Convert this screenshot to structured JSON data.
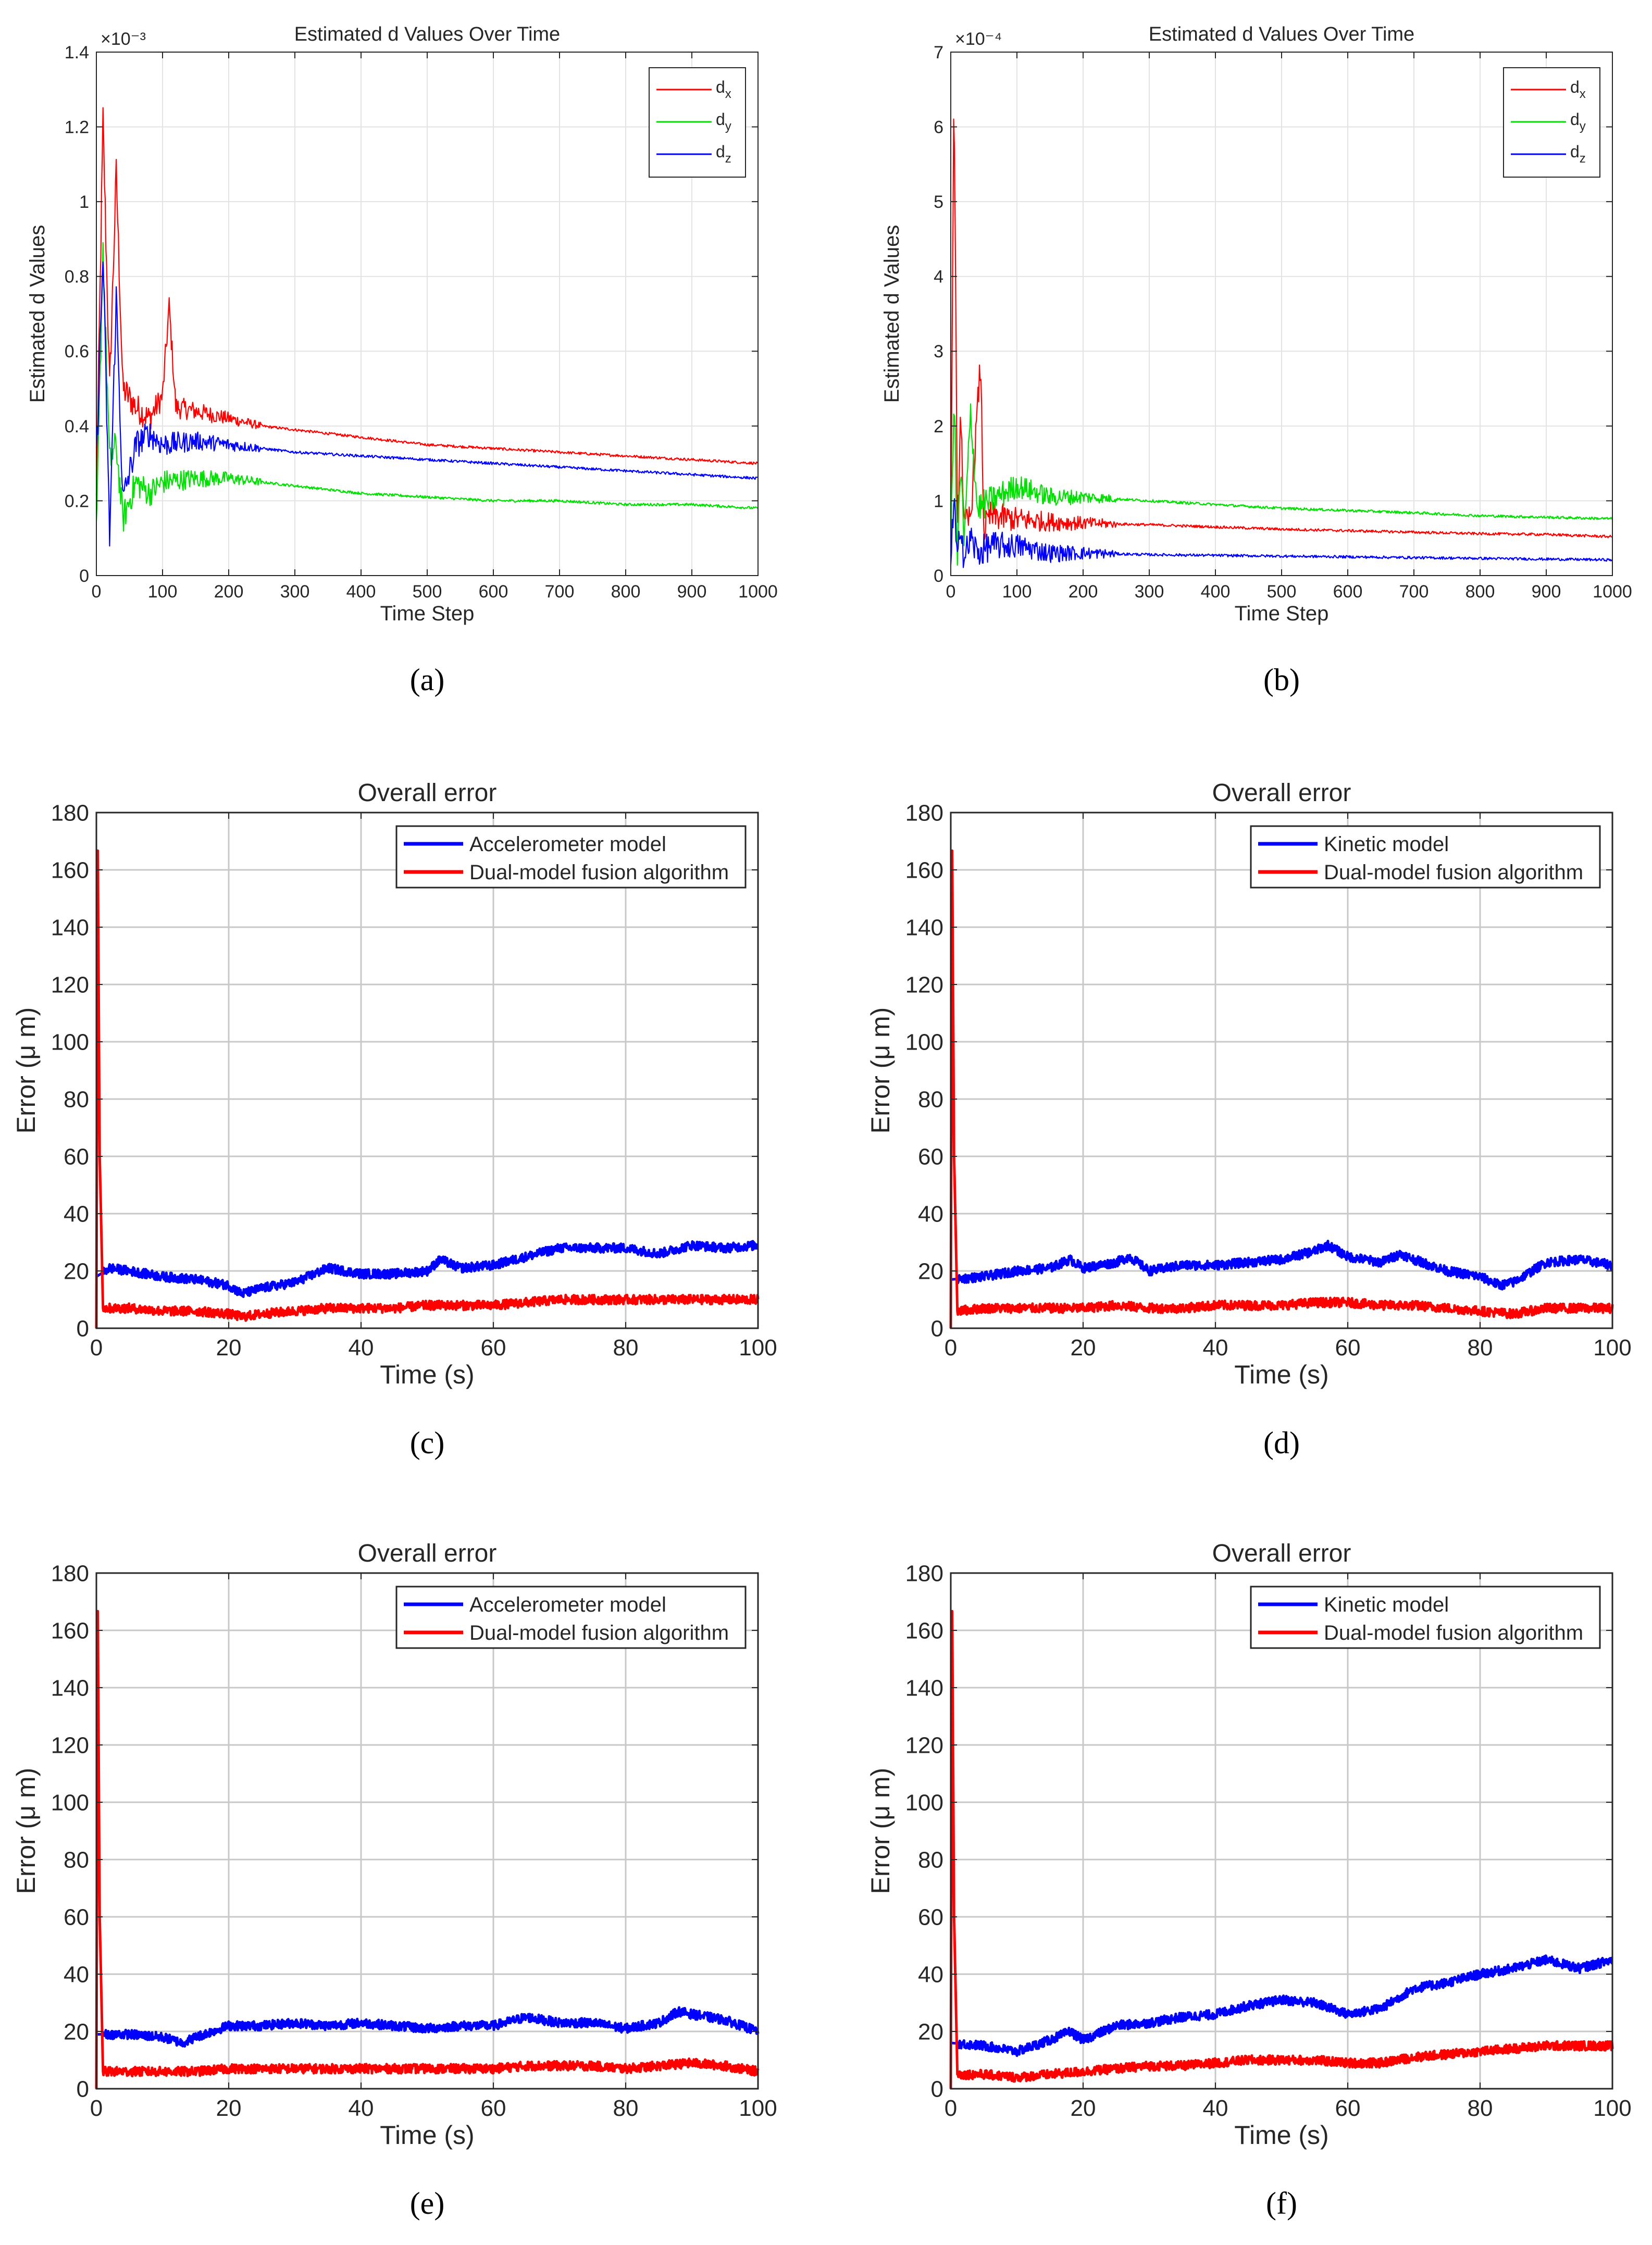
{
  "chart_data": [
    {
      "panel": "(a)",
      "type": "line",
      "title": "Estimated d Values Over Time",
      "xlabel": "Time Step",
      "ylabel": "Estimated d Values",
      "axis_exponent": "×10⁻³",
      "xlim": [
        0,
        1000
      ],
      "ylim": [
        0,
        1.4
      ],
      "xticks": [
        "0",
        "100",
        "200",
        "300",
        "400",
        "500",
        "600",
        "700",
        "800",
        "900",
        "1000"
      ],
      "yticks": [
        "0",
        "0.2",
        "0.4",
        "0.6",
        "0.8",
        "1",
        "1.2",
        "1.4"
      ],
      "grid": true,
      "legend_position": "top-right",
      "series": [
        {
          "name": "d_x",
          "color": "#ff0000",
          "x": [
            0,
            10,
            20,
            30,
            40,
            60,
            80,
            100,
            110,
            120,
            150,
            200,
            250,
            300,
            400,
            500,
            600,
            700,
            800,
            900,
            1000
          ],
          "y": [
            0.2,
            1.22,
            0.5,
            1.08,
            0.5,
            0.45,
            0.42,
            0.48,
            0.72,
            0.45,
            0.44,
            0.42,
            0.4,
            0.39,
            0.37,
            0.35,
            0.34,
            0.33,
            0.32,
            0.31,
            0.3
          ]
        },
        {
          "name": "d_y",
          "color": "#00e000",
          "x": [
            0,
            10,
            20,
            30,
            40,
            60,
            80,
            100,
            150,
            200,
            250,
            300,
            400,
            500,
            600,
            700,
            800,
            900,
            1000
          ],
          "y": [
            0.1,
            0.88,
            0.3,
            0.35,
            0.15,
            0.25,
            0.22,
            0.25,
            0.26,
            0.26,
            0.25,
            0.24,
            0.22,
            0.21,
            0.2,
            0.2,
            0.19,
            0.19,
            0.18
          ]
        },
        {
          "name": "d_z",
          "color": "#0000ff",
          "x": [
            0,
            10,
            20,
            30,
            40,
            60,
            80,
            100,
            150,
            200,
            250,
            300,
            400,
            500,
            600,
            700,
            800,
            900,
            1000
          ],
          "y": [
            0.3,
            0.86,
            0.1,
            0.75,
            0.2,
            0.35,
            0.38,
            0.35,
            0.36,
            0.35,
            0.34,
            0.33,
            0.32,
            0.31,
            0.3,
            0.29,
            0.28,
            0.27,
            0.26
          ]
        }
      ]
    },
    {
      "panel": "(b)",
      "type": "line",
      "title": "Estimated d Values Over Time",
      "xlabel": "Time Step",
      "ylabel": "Estimated d Values",
      "axis_exponent": "×10⁻⁴",
      "xlim": [
        0,
        1000
      ],
      "ylim": [
        0,
        7
      ],
      "xticks": [
        "0",
        "100",
        "200",
        "300",
        "400",
        "500",
        "600",
        "700",
        "800",
        "900",
        "1000"
      ],
      "yticks": [
        "0",
        "1",
        "2",
        "3",
        "4",
        "5",
        "6",
        "7"
      ],
      "grid": true,
      "legend_position": "top-right",
      "series": [
        {
          "name": "d_x",
          "color": "#ff0000",
          "x": [
            0,
            5,
            10,
            15,
            20,
            30,
            45,
            50,
            60,
            100,
            150,
            200,
            300,
            400,
            500,
            600,
            700,
            800,
            900,
            1000
          ],
          "y": [
            0.5,
            6.6,
            0.5,
            2.3,
            0.6,
            0.8,
            2.85,
            0.6,
            0.8,
            0.75,
            0.72,
            0.7,
            0.68,
            0.65,
            0.62,
            0.6,
            0.58,
            0.56,
            0.55,
            0.52
          ]
        },
        {
          "name": "d_y",
          "color": "#00e000",
          "x": [
            0,
            5,
            10,
            15,
            20,
            30,
            40,
            60,
            100,
            150,
            200,
            300,
            400,
            500,
            600,
            700,
            800,
            900,
            1000
          ],
          "y": [
            0.3,
            2.5,
            0.2,
            1.5,
            0.4,
            2.2,
            0.9,
            1.0,
            1.2,
            1.05,
            1.05,
            1.0,
            0.95,
            0.9,
            0.87,
            0.84,
            0.8,
            0.78,
            0.76
          ]
        },
        {
          "name": "d_z",
          "color": "#0000ff",
          "x": [
            0,
            5,
            10,
            15,
            20,
            30,
            40,
            60,
            100,
            150,
            200,
            300,
            400,
            500,
            600,
            700,
            800,
            900,
            1000
          ],
          "y": [
            0.2,
            1.0,
            0.1,
            0.8,
            0.2,
            0.5,
            0.3,
            0.4,
            0.4,
            0.3,
            0.3,
            0.28,
            0.27,
            0.26,
            0.25,
            0.24,
            0.23,
            0.22,
            0.21
          ]
        }
      ]
    },
    {
      "panel": "(c)",
      "type": "line",
      "title": "Overall error",
      "xlabel": "Time (s)",
      "ylabel": "Error (μ m)",
      "xlim": [
        0,
        100
      ],
      "ylim": [
        0,
        180
      ],
      "xticks": [
        "0",
        "20",
        "40",
        "60",
        "80",
        "100"
      ],
      "yticks": [
        "0",
        "20",
        "40",
        "60",
        "80",
        "100",
        "120",
        "140",
        "160",
        "180"
      ],
      "grid": true,
      "legend_position": "top-right",
      "series": [
        {
          "name": "Accelerometer model",
          "color": "#0000ff",
          "x": [
            0,
            2,
            5,
            10,
            15,
            20,
            22,
            25,
            30,
            35,
            40,
            45,
            50,
            52,
            55,
            60,
            65,
            70,
            75,
            80,
            85,
            90,
            95,
            100
          ],
          "y": [
            18,
            21,
            20,
            18,
            17,
            15,
            12,
            14,
            16,
            21,
            19,
            19,
            20,
            24,
            21,
            22,
            25,
            28,
            28,
            28,
            26,
            29,
            28,
            29
          ]
        },
        {
          "name": "Dual-model fusion algorithm",
          "color": "#ff0000",
          "x": [
            0,
            0.2,
            0.5,
            1,
            5,
            10,
            15,
            20,
            22,
            25,
            30,
            35,
            40,
            45,
            50,
            55,
            60,
            65,
            70,
            75,
            80,
            85,
            90,
            95,
            100
          ],
          "y": [
            0,
            172,
            60,
            7,
            7,
            6,
            6,
            5,
            4,
            5,
            6,
            7,
            7,
            7,
            8,
            8,
            8,
            9,
            10,
            10,
            10,
            10,
            10,
            10,
            10
          ]
        }
      ]
    },
    {
      "panel": "(d)",
      "type": "line",
      "title": "Overall error",
      "xlabel": "Time (s)",
      "ylabel": "Error (μ m)",
      "xlim": [
        0,
        100
      ],
      "ylim": [
        0,
        180
      ],
      "xticks": [
        "0",
        "20",
        "40",
        "60",
        "80",
        "100"
      ],
      "yticks": [
        "0",
        "20",
        "40",
        "60",
        "80",
        "100",
        "120",
        "140",
        "160",
        "180"
      ],
      "grid": true,
      "legend_position": "top-right",
      "series": [
        {
          "name": "Kinetic model",
          "color": "#0000ff",
          "x": [
            0,
            5,
            10,
            15,
            18,
            20,
            25,
            27,
            30,
            35,
            40,
            45,
            50,
            55,
            57,
            60,
            65,
            68,
            70,
            75,
            80,
            83,
            85,
            90,
            95,
            100
          ],
          "y": [
            17,
            18,
            20,
            21,
            24,
            21,
            23,
            25,
            20,
            22,
            22,
            23,
            24,
            27,
            29,
            25,
            23,
            26,
            24,
            20,
            18,
            15,
            16,
            23,
            24,
            22
          ]
        },
        {
          "name": "Dual-model fusion algorithm",
          "color": "#ff0000",
          "x": [
            0,
            0.2,
            0.5,
            1,
            5,
            10,
            15,
            20,
            25,
            30,
            35,
            40,
            45,
            50,
            55,
            60,
            65,
            70,
            75,
            80,
            85,
            90,
            95,
            100
          ],
          "y": [
            0,
            172,
            60,
            6,
            7,
            7,
            7,
            7,
            8,
            7,
            7,
            8,
            8,
            8,
            9,
            9,
            8,
            8,
            7,
            6,
            5,
            7,
            7,
            7
          ]
        }
      ]
    },
    {
      "panel": "(e)",
      "type": "line",
      "title": "Overall error",
      "xlabel": "Time (s)",
      "ylabel": "Error (μ m)",
      "xlim": [
        0,
        100
      ],
      "ylim": [
        0,
        180
      ],
      "xticks": [
        "0",
        "20",
        "40",
        "60",
        "80",
        "100"
      ],
      "yticks": [
        "0",
        "20",
        "40",
        "60",
        "80",
        "100",
        "120",
        "140",
        "160",
        "180"
      ],
      "grid": true,
      "legend_position": "top-right",
      "series": [
        {
          "name": "Accelerometer model",
          "color": "#0000ff",
          "x": [
            0,
            5,
            10,
            13,
            15,
            20,
            25,
            30,
            35,
            40,
            45,
            50,
            55,
            60,
            65,
            70,
            75,
            80,
            85,
            88,
            90,
            95,
            100
          ],
          "y": [
            19,
            19,
            18,
            16,
            18,
            22,
            22,
            23,
            22,
            23,
            22,
            21,
            22,
            22,
            25,
            23,
            23,
            21,
            23,
            27,
            26,
            24,
            20
          ]
        },
        {
          "name": "Dual-model fusion algorithm",
          "color": "#ff0000",
          "x": [
            0,
            0.2,
            0.5,
            1,
            5,
            10,
            15,
            20,
            25,
            30,
            35,
            40,
            45,
            50,
            55,
            60,
            65,
            70,
            75,
            80,
            85,
            90,
            95,
            100
          ],
          "y": [
            0,
            172,
            60,
            6,
            6,
            6,
            6,
            7,
            7,
            7,
            7,
            7,
            7,
            7,
            7,
            7,
            8,
            8,
            8,
            7,
            8,
            9,
            8,
            6
          ]
        }
      ]
    },
    {
      "panel": "(f)",
      "type": "line",
      "title": "Overall error",
      "xlabel": "Time (s)",
      "ylabel": "Error (μ m)",
      "xlim": [
        0,
        100
      ],
      "ylim": [
        0,
        180
      ],
      "xticks": [
        "0",
        "20",
        "40",
        "60",
        "80",
        "100"
      ],
      "yticks": [
        "0",
        "20",
        "40",
        "60",
        "80",
        "100",
        "120",
        "140",
        "160",
        "180"
      ],
      "grid": true,
      "legend_position": "top-right",
      "series": [
        {
          "name": "Kinetic model",
          "color": "#0000ff",
          "x": [
            0,
            5,
            10,
            15,
            18,
            20,
            25,
            30,
            35,
            40,
            45,
            50,
            55,
            60,
            65,
            70,
            75,
            80,
            85,
            90,
            95,
            100
          ],
          "y": [
            16,
            15,
            13,
            17,
            20,
            17,
            22,
            23,
            25,
            26,
            29,
            31,
            30,
            26,
            28,
            35,
            37,
            40,
            42,
            45,
            42,
            45
          ]
        },
        {
          "name": "Dual-model fusion algorithm",
          "color": "#ff0000",
          "x": [
            0,
            0.2,
            0.5,
            1,
            5,
            10,
            15,
            20,
            25,
            30,
            35,
            40,
            45,
            50,
            55,
            60,
            65,
            70,
            75,
            80,
            85,
            90,
            95,
            100
          ],
          "y": [
            0,
            172,
            60,
            5,
            5,
            4,
            5,
            6,
            7,
            8,
            8,
            9,
            10,
            10,
            10,
            9,
            9,
            11,
            12,
            13,
            14,
            15,
            15,
            15
          ]
        }
      ]
    }
  ],
  "captions": [
    "(a)",
    "(b)",
    "(c)",
    "(d)",
    "(e)",
    "(f)"
  ]
}
